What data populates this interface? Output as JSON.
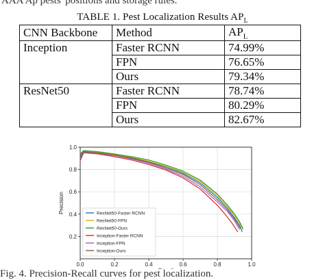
{
  "page": {
    "cutoff_text": "AAA Ap pests' positions and storage rules.",
    "figure_caption_fragment": "Fig. 4. Precision-Recall curves for pest localization."
  },
  "table": {
    "caption_main": "TABLE 1. Pest Localization Results AP",
    "caption_sub": "L",
    "headers": {
      "backbone": "CNN Backbone",
      "method": "Method",
      "metric": "AP",
      "metric_sub": "L"
    },
    "groups": [
      {
        "backbone": "Inception",
        "rows": [
          {
            "method": "Faster RCNN",
            "value": "74.99%"
          },
          {
            "method": "FPN",
            "value": "76.65%"
          },
          {
            "method": "Ours",
            "value": "79.34%"
          }
        ]
      },
      {
        "backbone": "ResNet50",
        "rows": [
          {
            "method": "Faster RCNN",
            "value": "78.74%"
          },
          {
            "method": "FPN",
            "value": "80.29%"
          },
          {
            "method": "Ours",
            "value": "82.67%"
          }
        ]
      }
    ]
  },
  "chart_data": {
    "type": "line",
    "xlabel": "Recall",
    "ylabel": "Precision",
    "xlim": [
      0,
      1.0
    ],
    "ylim": [
      0,
      1.0
    ],
    "xticks": [
      "0.0",
      "0.2",
      "0.4",
      "0.6",
      "0.8",
      "1.0"
    ],
    "yticks": [
      "0.2",
      "0.4",
      "0.6",
      "0.8",
      "1.0"
    ],
    "grid": true,
    "legend_position": "lower-left",
    "series": [
      {
        "name": "ResNet50-Faster RCNN",
        "color": "#1f77b4",
        "x": [
          0.0,
          0.02,
          0.1,
          0.2,
          0.3,
          0.4,
          0.5,
          0.6,
          0.7,
          0.8,
          0.86,
          0.9,
          0.93,
          0.945
        ],
        "y": [
          0.93,
          0.96,
          0.95,
          0.93,
          0.905,
          0.87,
          0.825,
          0.765,
          0.68,
          0.55,
          0.45,
          0.37,
          0.3,
          0.24
        ]
      },
      {
        "name": "ResNet50-FPN",
        "color": "#d4b20c",
        "x": [
          0.0,
          0.02,
          0.1,
          0.2,
          0.3,
          0.4,
          0.5,
          0.6,
          0.7,
          0.8,
          0.86,
          0.9,
          0.93,
          0.95
        ],
        "y": [
          0.94,
          0.965,
          0.955,
          0.935,
          0.91,
          0.875,
          0.83,
          0.775,
          0.695,
          0.565,
          0.465,
          0.39,
          0.32,
          0.26
        ]
      },
      {
        "name": "ResNet50-Ours",
        "color": "#2ca02c",
        "x": [
          0.0,
          0.02,
          0.1,
          0.2,
          0.3,
          0.4,
          0.5,
          0.6,
          0.7,
          0.8,
          0.86,
          0.9,
          0.93,
          0.95
        ],
        "y": [
          0.94,
          0.97,
          0.96,
          0.94,
          0.915,
          0.885,
          0.84,
          0.785,
          0.705,
          0.58,
          0.48,
          0.4,
          0.33,
          0.27
        ]
      },
      {
        "name": "Inception-Faster RCNN",
        "color": "#d62728",
        "x": [
          0.0,
          0.02,
          0.1,
          0.2,
          0.3,
          0.4,
          0.5,
          0.6,
          0.7,
          0.8,
          0.85,
          0.89,
          0.92
        ],
        "y": [
          0.88,
          0.95,
          0.94,
          0.915,
          0.885,
          0.845,
          0.795,
          0.725,
          0.625,
          0.48,
          0.39,
          0.31,
          0.24
        ]
      },
      {
        "name": "Inception-FPN",
        "color": "#9467bd",
        "x": [
          0.0,
          0.02,
          0.1,
          0.2,
          0.3,
          0.4,
          0.5,
          0.6,
          0.7,
          0.8,
          0.86,
          0.9,
          0.93
        ],
        "y": [
          0.9,
          0.955,
          0.945,
          0.925,
          0.895,
          0.855,
          0.805,
          0.74,
          0.645,
          0.51,
          0.42,
          0.34,
          0.26
        ]
      },
      {
        "name": "Inception-Ours",
        "color": "#8c564b",
        "x": [
          0.0,
          0.02,
          0.1,
          0.2,
          0.3,
          0.4,
          0.5,
          0.6,
          0.7,
          0.8,
          0.86,
          0.9,
          0.935
        ],
        "y": [
          0.91,
          0.96,
          0.95,
          0.93,
          0.9,
          0.865,
          0.815,
          0.755,
          0.665,
          0.53,
          0.435,
          0.355,
          0.27
        ]
      }
    ]
  }
}
